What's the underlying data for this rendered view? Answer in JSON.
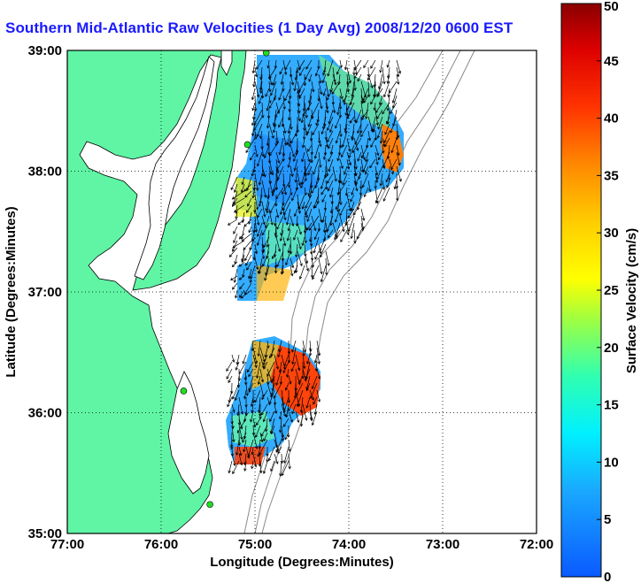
{
  "title": "Southern Mid-Atlantic Raw Velocities (1 Day Avg) 2008/12/20 0600 EST",
  "map": {
    "xlabel": "Longitude (Degrees:Minutes)",
    "ylabel": "Latitude (Degrees:Minutes)",
    "x_ticks": [
      "77:00",
      "76:00",
      "75:00",
      "74:00",
      "73:00",
      "72:00"
    ],
    "y_ticks": [
      "39:00",
      "38:00",
      "37:00",
      "36:00",
      "35:00"
    ],
    "lon_range": [
      -77,
      -72
    ],
    "lat_range": [
      35,
      39
    ],
    "land_color": "#5ff5a5",
    "grid": "dotted",
    "stations": [
      {
        "lon": -74.88,
        "lat": 38.98
      },
      {
        "lon": -75.08,
        "lat": 38.22
      },
      {
        "lon": -75.76,
        "lat": 36.18
      },
      {
        "lon": -75.48,
        "lat": 35.24
      }
    ]
  },
  "colorbar": {
    "label": "Surface Velocity (cm/s)",
    "ticks": [
      "0",
      "5",
      "10",
      "15",
      "20",
      "25",
      "30",
      "35",
      "40",
      "45",
      "50"
    ],
    "range": [
      0,
      50
    ]
  }
}
